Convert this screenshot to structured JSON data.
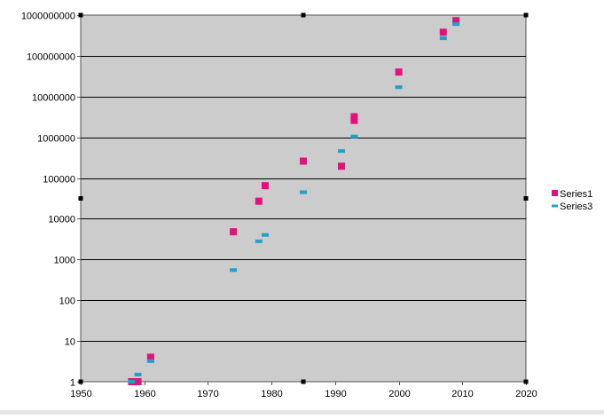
{
  "chart_data": {
    "type": "scatter",
    "title": "",
    "xlabel": "",
    "ylabel": "",
    "xlim": [
      1950,
      2020
    ],
    "ylim": [
      1,
      1000000000
    ],
    "yscale": "log",
    "grid": true,
    "legend_position": "right",
    "plot_background": "#cccccc",
    "x_ticks": [
      1950,
      1960,
      1970,
      1980,
      1990,
      2000,
      2010,
      2020
    ],
    "y_ticks": [
      1,
      10,
      100,
      1000,
      10000,
      100000,
      1000000,
      10000000,
      100000000,
      1000000000
    ],
    "x_tick_labels": [
      "1950",
      "1960",
      "1970",
      "1980",
      "1990",
      "2000",
      "2010",
      "2020"
    ],
    "y_tick_labels": [
      "1",
      "10",
      "100",
      "1000",
      "10000",
      "100000",
      "1000000",
      "10000000",
      "100000000",
      "1000000000"
    ],
    "series": [
      {
        "name": "Series1",
        "color": "#e3117b",
        "marker": "square",
        "points": [
          [
            1958,
            1
          ],
          [
            1959,
            1
          ],
          [
            1961,
            4
          ],
          [
            1974,
            4800
          ],
          [
            1978,
            27000
          ],
          [
            1979,
            65000
          ],
          [
            1985,
            260000
          ],
          [
            1991,
            195000
          ],
          [
            1993,
            2600000
          ],
          [
            1993,
            3200000
          ],
          [
            2000,
            40000000
          ],
          [
            2007,
            380000000
          ],
          [
            2009,
            730000000
          ]
        ]
      },
      {
        "name": "Series3",
        "color": "#1fa0cf",
        "marker": "dash",
        "points": [
          [
            1958,
            1
          ],
          [
            1959,
            1.5
          ],
          [
            1961,
            3.2
          ],
          [
            1974,
            550
          ],
          [
            1978,
            2800
          ],
          [
            1979,
            4000
          ],
          [
            1985,
            45000
          ],
          [
            1991,
            460000
          ],
          [
            1993,
            1050000
          ],
          [
            2000,
            17000000
          ],
          [
            2007,
            270000000
          ],
          [
            2009,
            600000000
          ]
        ]
      }
    ]
  }
}
